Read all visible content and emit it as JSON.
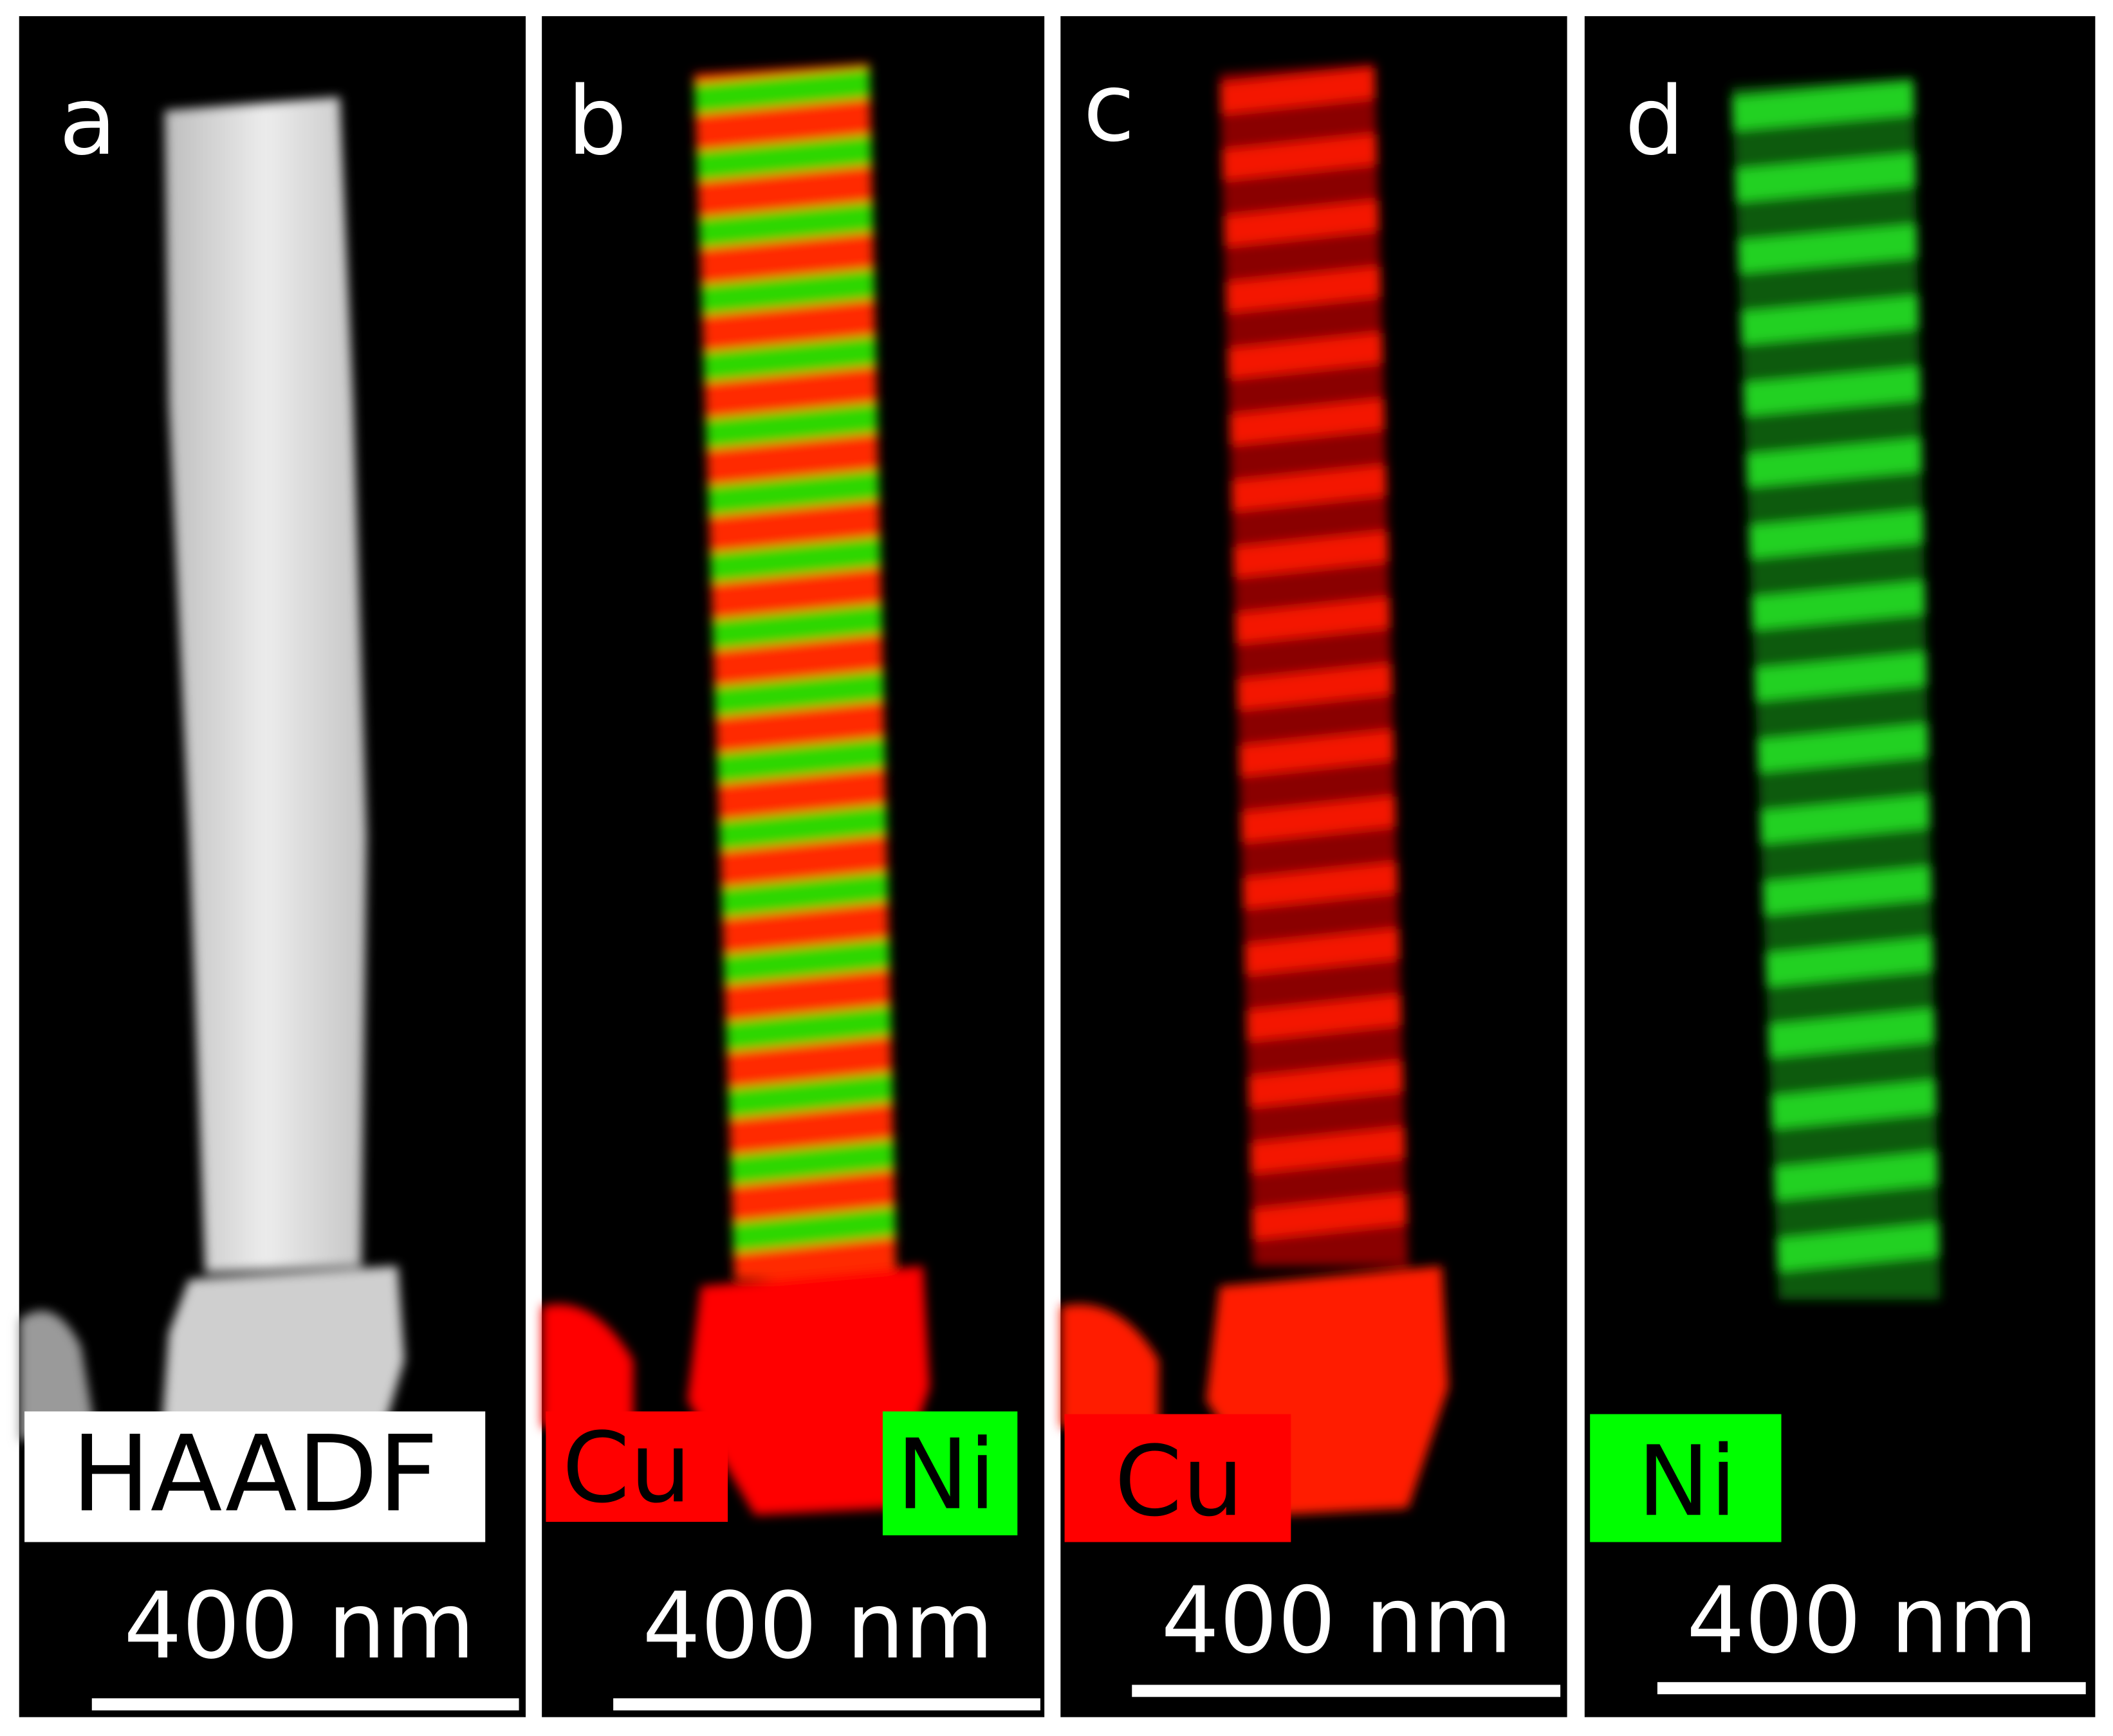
{
  "panels": [
    {
      "letter": "a",
      "labels": [
        "HAADF"
      ],
      "scale_bar": "400 nm"
    },
    {
      "letter": "b",
      "labels": [
        "Cu",
        "Ni"
      ],
      "scale_bar": "400 nm"
    },
    {
      "letter": "c",
      "labels": [
        "Cu"
      ],
      "scale_bar": "400 nm"
    },
    {
      "letter": "d",
      "labels": [
        "Ni"
      ],
      "scale_bar": "400 nm"
    }
  ]
}
